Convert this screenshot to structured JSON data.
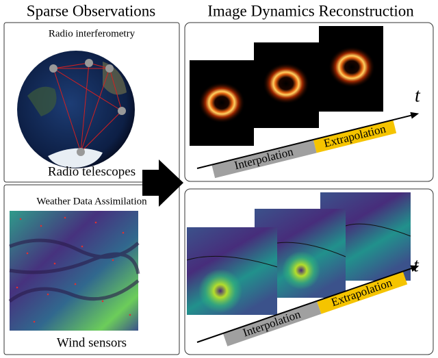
{
  "left": {
    "title": "Sparse Observations",
    "radio": {
      "heading": "Radio interferometry",
      "caption": "Radio telescopes"
    },
    "weather": {
      "heading": "Weather Data Assimilation",
      "caption": "Wind sensors"
    }
  },
  "right": {
    "title": "Image Dynamics Reconstruction",
    "timelines": [
      {
        "time_label": "t",
        "interpolation": "Interpolation",
        "extrapolation": "Extrapolation"
      },
      {
        "time_label": "t",
        "interpolation": "Interpolation",
        "extrapolation": "Extrapolation"
      }
    ]
  }
}
